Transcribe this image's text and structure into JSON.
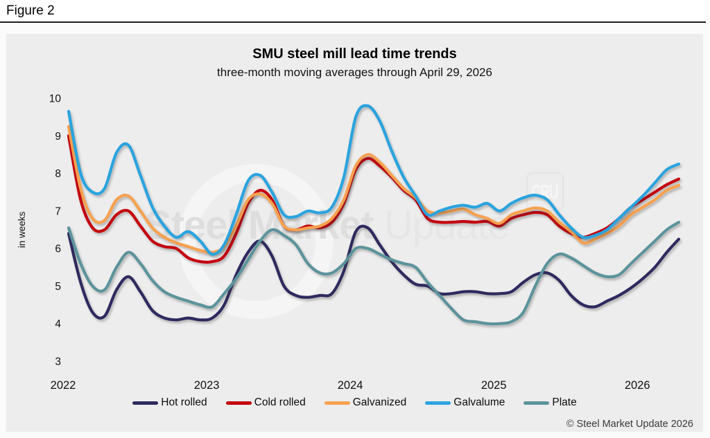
{
  "header": {
    "figure_label": "Figure 2"
  },
  "chart": {
    "title": "SMU steel mill lead time trends",
    "subtitle": "three-month moving averages through April 29, 2026"
  },
  "watermark": {
    "brand_bold": "Steel Market",
    "brand_light": "Update",
    "cru": "CRU"
  },
  "footer": {
    "copyright": "© Steel Market Update 2026"
  },
  "chart_data": {
    "type": "line",
    "title": "SMU steel mill lead time trends",
    "subtitle": "three-month moving averages through April 29, 2026",
    "ylabel": "in weeks",
    "ylim": [
      3,
      10
    ],
    "yticks": [
      3,
      4,
      5,
      6,
      7,
      8,
      9,
      10
    ],
    "x_tick_labels": [
      "2022",
      "2023",
      "2024",
      "2025",
      "2026"
    ],
    "x_months_start": "2022-01",
    "x_months_end": "2026-04",
    "grid": false,
    "legend_position": "bottom",
    "series": [
      {
        "name": "Hot rolled",
        "color": "#2d2b5e",
        "values": [
          6.4,
          5.1,
          4.3,
          4.2,
          4.9,
          5.25,
          4.85,
          4.35,
          4.15,
          4.1,
          4.15,
          4.1,
          4.15,
          4.5,
          5.3,
          5.9,
          6.2,
          5.8,
          5.0,
          4.75,
          4.7,
          4.75,
          4.8,
          5.4,
          6.45,
          6.55,
          6.1,
          5.65,
          5.3,
          5.05,
          5.0,
          4.8,
          4.8,
          4.85,
          4.85,
          4.8,
          4.8,
          4.85,
          5.1,
          5.3,
          5.35,
          5.15,
          4.75,
          4.5,
          4.45,
          4.6,
          4.75,
          4.95,
          5.2,
          5.5,
          5.9,
          6.25
        ]
      },
      {
        "name": "Cold rolled",
        "color": "#c3000a",
        "values": [
          9.0,
          7.3,
          6.55,
          6.5,
          6.9,
          7.0,
          6.6,
          6.2,
          6.05,
          6.0,
          5.75,
          5.65,
          5.65,
          5.8,
          6.4,
          7.2,
          7.55,
          7.3,
          6.6,
          6.5,
          6.6,
          6.55,
          6.7,
          7.2,
          8.1,
          8.4,
          8.2,
          7.9,
          7.55,
          7.3,
          6.8,
          6.7,
          6.7,
          6.72,
          6.7,
          6.72,
          6.6,
          6.8,
          6.9,
          6.96,
          6.9,
          6.6,
          6.4,
          6.3,
          6.4,
          6.55,
          6.8,
          7.1,
          7.3,
          7.5,
          7.7,
          7.85
        ]
      },
      {
        "name": "Galvanized",
        "color": "#f6a14f",
        "values": [
          9.25,
          7.6,
          6.8,
          6.75,
          7.3,
          7.4,
          7.0,
          6.55,
          6.3,
          6.15,
          6.05,
          5.95,
          5.9,
          6.05,
          6.6,
          7.3,
          7.45,
          7.2,
          6.6,
          6.5,
          6.55,
          6.6,
          6.8,
          7.3,
          8.2,
          8.5,
          8.3,
          7.95,
          7.6,
          7.35,
          7.0,
          6.95,
          7.0,
          7.05,
          6.9,
          6.8,
          6.67,
          6.9,
          7.0,
          7.08,
          7.0,
          6.7,
          6.45,
          6.15,
          6.25,
          6.4,
          6.6,
          6.9,
          7.1,
          7.3,
          7.55,
          7.68
        ]
      },
      {
        "name": "Galvalume",
        "color": "#2ba3de",
        "values": [
          9.65,
          8.0,
          7.5,
          7.6,
          8.55,
          8.75,
          7.95,
          7.1,
          6.6,
          6.3,
          6.45,
          6.2,
          5.85,
          6.1,
          6.9,
          7.8,
          7.95,
          7.5,
          6.9,
          6.85,
          7.0,
          6.95,
          7.1,
          7.9,
          9.5,
          9.8,
          9.4,
          8.6,
          7.9,
          7.4,
          6.9,
          7.0,
          7.1,
          7.15,
          7.1,
          7.2,
          7.0,
          7.2,
          7.35,
          7.42,
          7.3,
          6.9,
          6.55,
          6.3,
          6.35,
          6.5,
          6.8,
          7.1,
          7.4,
          7.75,
          8.1,
          8.25
        ]
      },
      {
        "name": "Plate",
        "color": "#5b939c",
        "values": [
          6.55,
          5.6,
          5.0,
          4.9,
          5.5,
          5.9,
          5.6,
          5.15,
          4.85,
          4.7,
          4.6,
          4.5,
          4.45,
          4.8,
          5.2,
          5.7,
          6.2,
          6.5,
          6.35,
          6.1,
          5.6,
          5.35,
          5.35,
          5.6,
          6.0,
          6.0,
          5.85,
          5.7,
          5.6,
          5.5,
          5.1,
          4.75,
          4.4,
          4.1,
          4.05,
          4.0,
          4.0,
          4.05,
          4.3,
          5.0,
          5.6,
          5.85,
          5.75,
          5.55,
          5.35,
          5.25,
          5.3,
          5.6,
          5.9,
          6.2,
          6.5,
          6.7
        ]
      }
    ]
  }
}
